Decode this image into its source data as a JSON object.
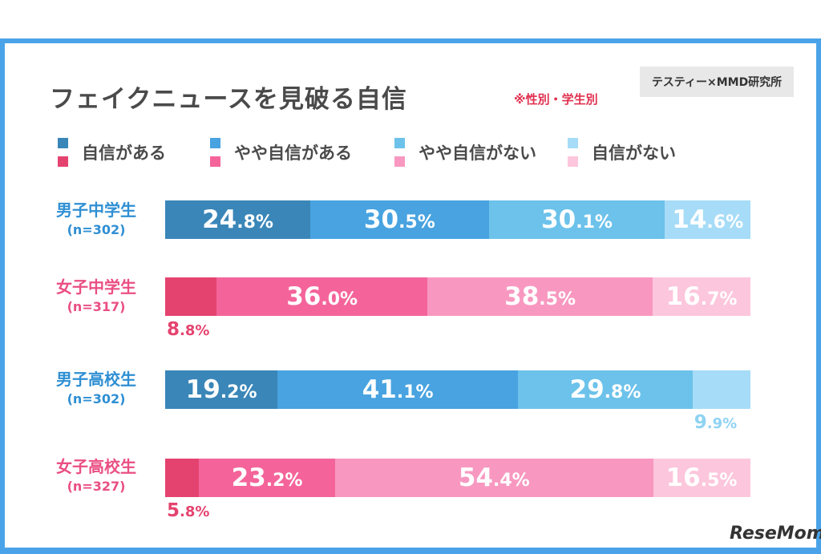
{
  "header": {
    "title": "フェイクニュースを見破る自信",
    "note": "※性別・学生別",
    "source": "テスティー×MMD研究所"
  },
  "legend": [
    {
      "label": "自信がある",
      "male_color": "#3a86b8",
      "female_color": "#e5436f"
    },
    {
      "label": "やや自信がある",
      "male_color": "#48a3e0",
      "female_color": "#f4649a"
    },
    {
      "label": "やや自信がない",
      "male_color": "#6cc2ea",
      "female_color": "#f898c0"
    },
    {
      "label": "自信がない",
      "male_color": "#a6dcf7",
      "female_color": "#fcc6dc"
    }
  ],
  "logo": "ReseMom",
  "chart_data": {
    "type": "bar",
    "orientation": "horizontal-stacked-100",
    "title": "フェイクニュースを見破る自信",
    "categories": [
      "自信がある",
      "やや自信がある",
      "やや自信がない",
      "自信がない"
    ],
    "rows": [
      {
        "name": "男子中学生",
        "n": "(n=302)",
        "gender": "male",
        "values": [
          24.8,
          30.5,
          30.1,
          14.6
        ],
        "labels": [
          "24.8%",
          "30.5%",
          "30.1%",
          "14.6%"
        ],
        "outside": []
      },
      {
        "name": "女子中学生",
        "n": "(n=317)",
        "gender": "female",
        "values": [
          8.8,
          36.0,
          38.5,
          16.7
        ],
        "labels": [
          "8.8%",
          "36.0%",
          "38.5%",
          "16.7%"
        ],
        "outside": [
          0
        ]
      },
      {
        "name": "男子高校生",
        "n": "(n=302)",
        "gender": "male",
        "values": [
          19.2,
          41.1,
          29.8,
          9.9
        ],
        "labels": [
          "19.2%",
          "41.1%",
          "29.8%",
          "9.9%"
        ],
        "outside": [
          3
        ]
      },
      {
        "name": "女子高校生",
        "n": "(n=327)",
        "gender": "female",
        "values": [
          5.8,
          23.2,
          54.4,
          16.5
        ],
        "labels": [
          "5.8%",
          "23.2%",
          "54.4%",
          "16.5%"
        ],
        "outside": [
          0
        ]
      }
    ],
    "unit": "%",
    "xlim": [
      0,
      100
    ]
  }
}
